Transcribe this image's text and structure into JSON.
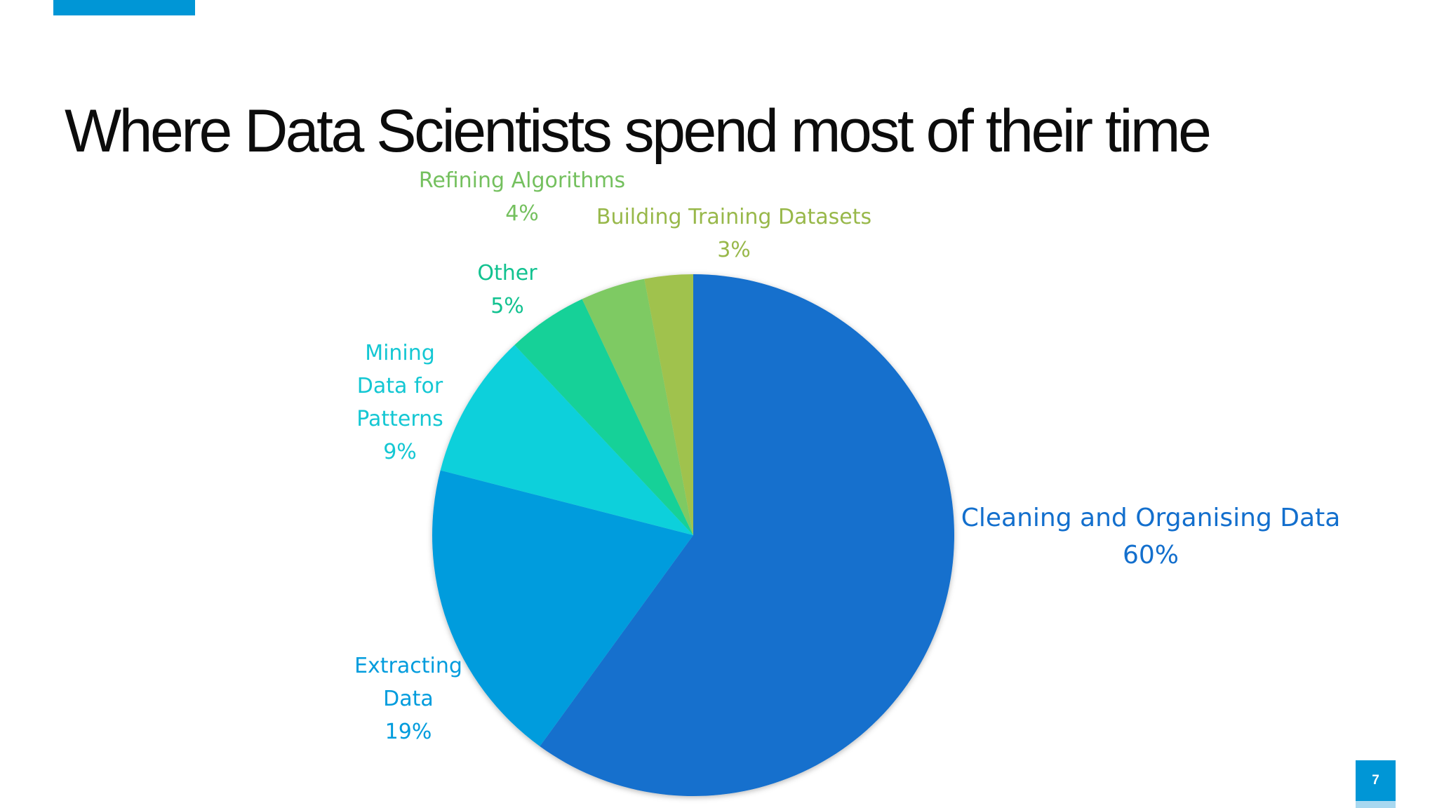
{
  "slide": {
    "title": "Where Data Scientists spend most of their time",
    "page_number": "7"
  },
  "colors": {
    "accent": "#0096d6",
    "accent_light": "#a8d8f0"
  },
  "chart_data": {
    "type": "pie",
    "title": "",
    "start_angle_deg": 0,
    "direction": "clockwise",
    "slices": [
      {
        "label": "Cleaning and Organising Data",
        "value": 60,
        "value_label": "60%",
        "color": "#136fcd",
        "label_color": "#136fcd"
      },
      {
        "label": "Extracting Data",
        "value": 19,
        "value_label": "19%",
        "color": "#019cdd",
        "label_color": "#019cdd"
      },
      {
        "label": "Mining Data for Patterns",
        "value": 9,
        "value_label": "9%",
        "color": "#0ad0db",
        "label_color": "#14c7d3"
      },
      {
        "label": "Other",
        "value": 5,
        "value_label": "5%",
        "color": "#12d198",
        "label_color": "#12c290"
      },
      {
        "label": "Refining Algorithms",
        "value": 4,
        "value_label": "4%",
        "color": "#7eca63",
        "label_color": "#74c05e"
      },
      {
        "label": "Building Training Datasets",
        "value": 3,
        "value_label": "3%",
        "color": "#a0c24d",
        "label_color": "#98b84a"
      }
    ]
  }
}
